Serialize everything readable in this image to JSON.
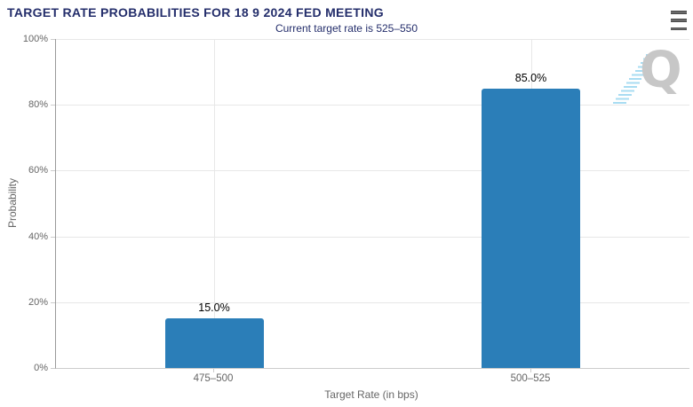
{
  "chart_data": {
    "type": "bar",
    "title": "TARGET RATE PROBABILITIES FOR 18 9 2024 FED MEETING",
    "subtitle": "Current target rate is 525–550",
    "categories": [
      "475–500",
      "500–525"
    ],
    "values": [
      15.0,
      85.0
    ],
    "data_labels": [
      "15.0%",
      "85.0%"
    ],
    "xlabel": "Target Rate (in bps)",
    "ylabel": "Probability",
    "ylim": [
      0,
      100
    ],
    "ytick_labels": [
      "0%",
      "20%",
      "40%",
      "60%",
      "80%",
      "100%"
    ],
    "grid": true,
    "legend_position": "none",
    "colors": {
      "bar": "#2b7eb8",
      "title": "#242e6b",
      "axis_label": "#666666",
      "data_label": "#000000",
      "gridline": "#e7e7e7"
    }
  },
  "watermark": {
    "letter": "Q"
  },
  "menu": {
    "icon": "hamburger-menu"
  }
}
